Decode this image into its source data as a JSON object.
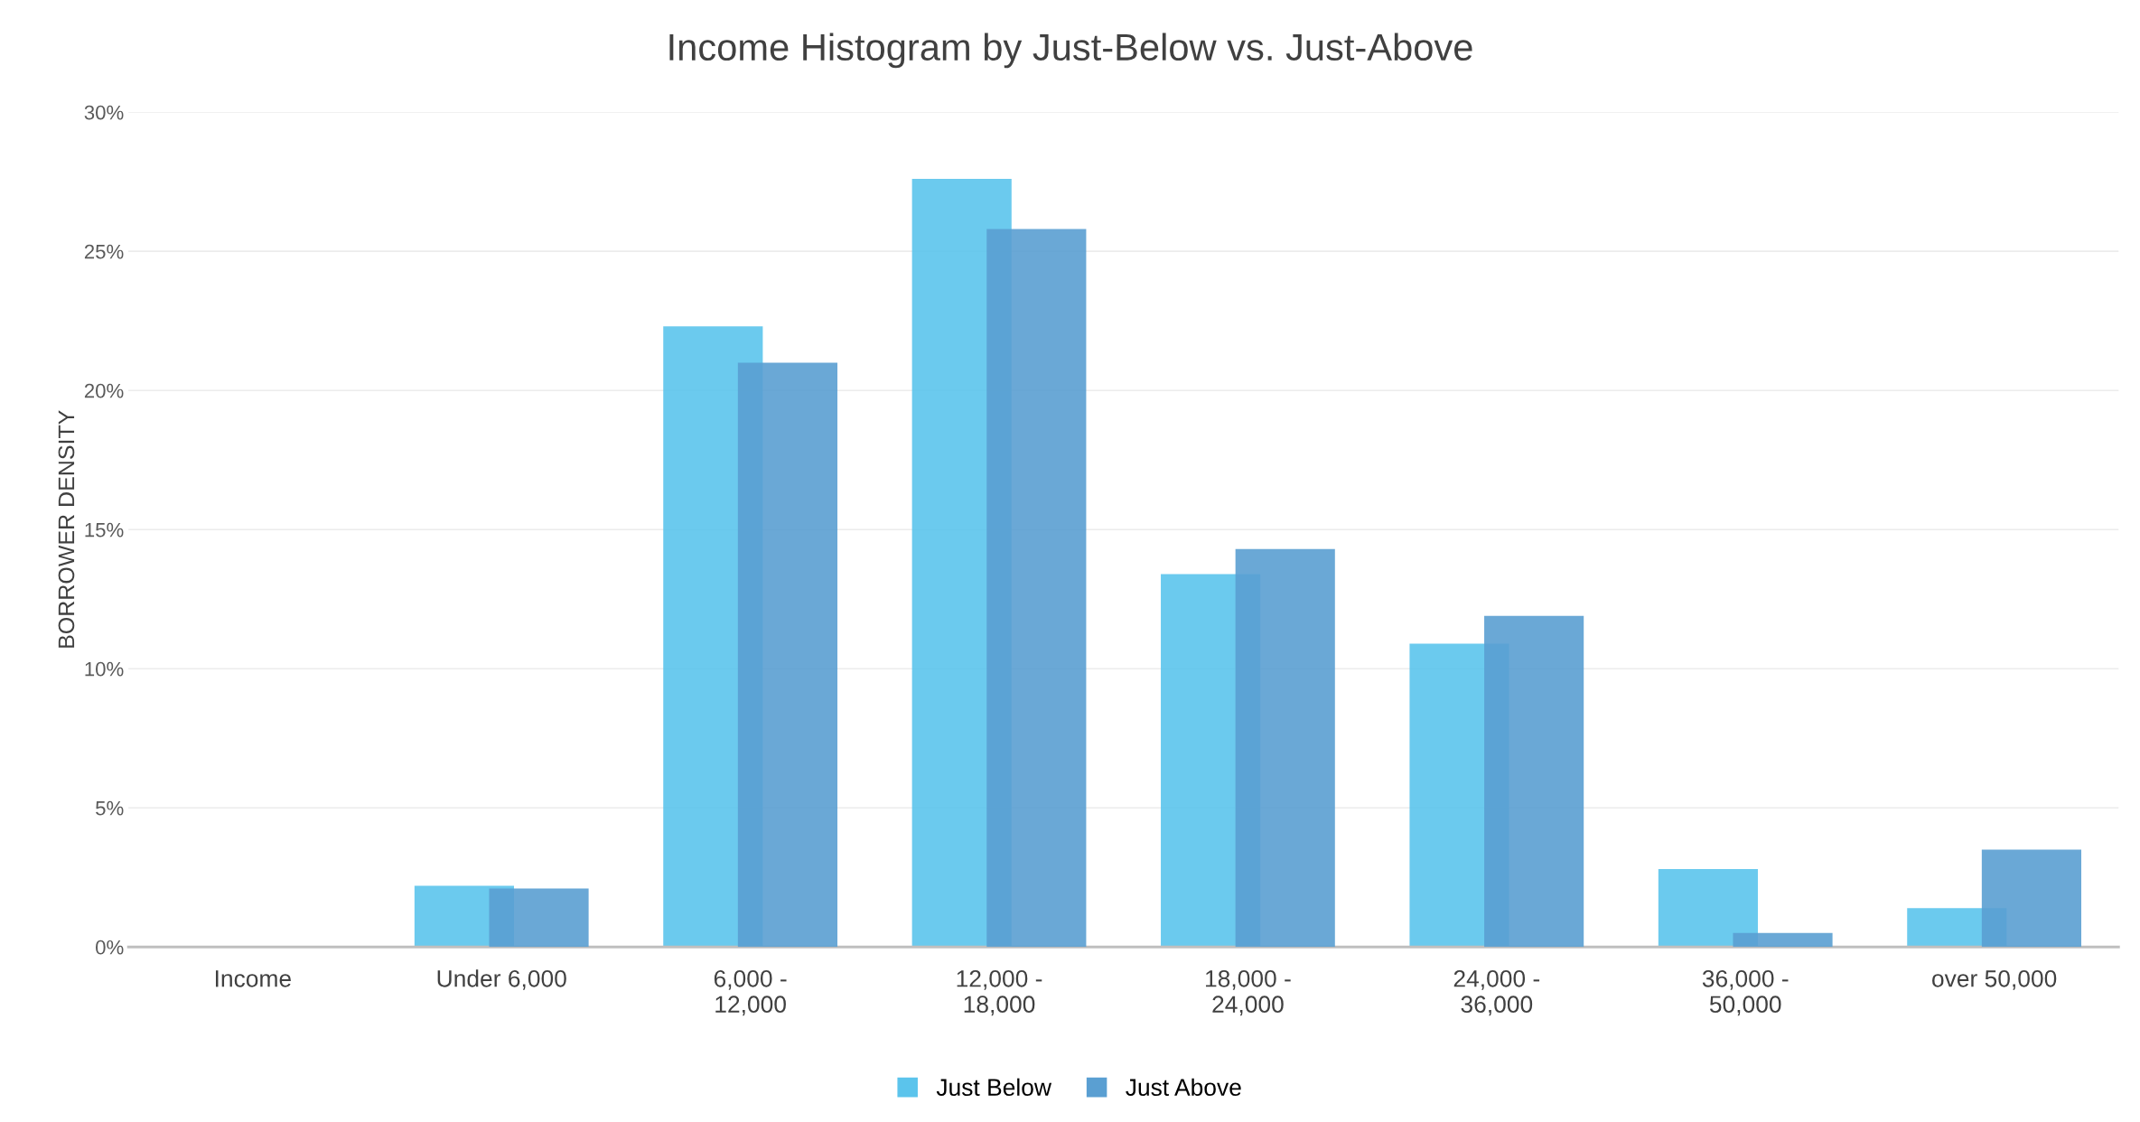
{
  "chart_data": {
    "type": "bar",
    "title": "Income Histogram by Just-Below vs. Just-Above",
    "ylabel": "BORROWER DENSITY",
    "categories": [
      "Income",
      "Under 6,000",
      "6,000 -\n12,000",
      "12,000 -\n18,000",
      "18,000 -\n24,000",
      "24,000 -\n36,000",
      "36,000 -\n50,000",
      "over 50,000"
    ],
    "series": [
      {
        "name": "Just Below",
        "color": "#5bc4ec",
        "values": [
          null,
          2.2,
          22.3,
          27.6,
          13.4,
          10.9,
          2.8,
          1.4
        ]
      },
      {
        "name": "Just Above",
        "color": "#5a9fd2",
        "values": [
          null,
          2.1,
          21.0,
          25.8,
          14.3,
          11.9,
          0.5,
          3.5
        ]
      }
    ],
    "ylim": [
      0,
      30
    ],
    "yticks": [
      {
        "value": 0,
        "label": "0%"
      },
      {
        "value": 5,
        "label": "5%"
      },
      {
        "value": 10,
        "label": "10%"
      },
      {
        "value": 15,
        "label": "15%"
      },
      {
        "value": 20,
        "label": "20%"
      },
      {
        "value": 25,
        "label": "25%"
      },
      {
        "value": 30,
        "label": "30%"
      }
    ],
    "grid": "y",
    "legend": "bottom"
  }
}
